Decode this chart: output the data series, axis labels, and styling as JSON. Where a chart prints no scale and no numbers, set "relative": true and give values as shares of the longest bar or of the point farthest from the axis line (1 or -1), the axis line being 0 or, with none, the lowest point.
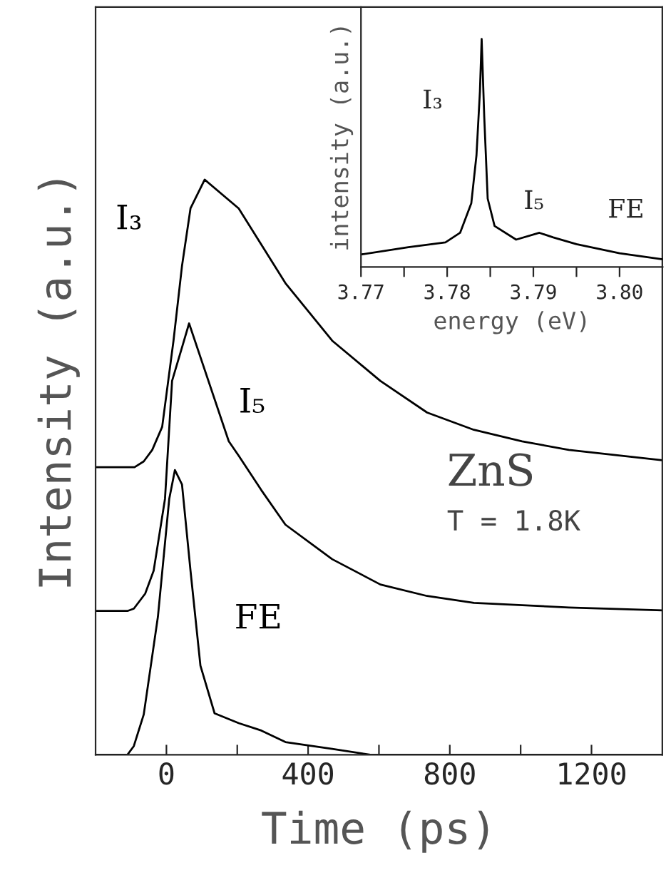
{
  "chart_data": [
    {
      "type": "line",
      "relative": true,
      "xlabel": "Time (ps)",
      "ylabel": "Intensity (a.u.)",
      "xlim": [
        -200,
        1400
      ],
      "xticks": [
        0,
        {
          "value": 200,
          "label": null
        },
        400,
        {
          "value": 600,
          "label": null
        },
        800,
        {
          "value": 1000,
          "label": null
        },
        1200
      ],
      "tick_labels": "x",
      "legend": false,
      "annotations": [
        "ZnS",
        "T = 1.8K"
      ],
      "series": [
        {
          "name": "I₃",
          "color": "#000000",
          "x": [
            -200,
            -90,
            -64,
            -40,
            -12,
            20,
            44,
            68,
            108,
            204,
            336,
            468,
            604,
            736,
            868,
            1004,
            1136,
            1400
          ],
          "values": [
            0.5,
            0.5,
            0.51,
            0.53,
            0.57,
            0.72,
            0.85,
            0.95,
            1.0,
            0.95,
            0.82,
            0.72,
            0.65,
            0.595,
            0.565,
            0.545,
            0.53,
            0.512
          ]
        },
        {
          "name": "I₅",
          "color": "#000000",
          "x": [
            -200,
            -110,
            -92,
            -60,
            -36,
            -4,
            16,
            64,
            176,
            204,
            268,
            336,
            468,
            604,
            736,
            868,
            1136,
            1400
          ],
          "values": [
            0.25,
            0.25,
            0.254,
            0.28,
            0.32,
            0.445,
            0.65,
            0.75,
            0.545,
            0.52,
            0.46,
            0.4,
            0.34,
            0.296,
            0.276,
            0.264,
            0.256,
            0.251
          ]
        },
        {
          "name": "FE",
          "color": "#000000",
          "x": [
            -200,
            -110,
            -92,
            -64,
            -24,
            8,
            24,
            44,
            68,
            96,
            136,
            204,
            268,
            336,
            468,
            576,
            1400
          ],
          "values": [
            0,
            0,
            0.015,
            0.07,
            0.24,
            0.445,
            0.495,
            0.47,
            0.32,
            0.155,
            0.072,
            0.055,
            0.042,
            0.022,
            0.01,
            0,
            0
          ]
        }
      ]
    },
    {
      "type": "line",
      "relative": true,
      "xlabel": "energy (eV)",
      "ylabel": "intensity (a.u.)",
      "xlim": [
        3.77,
        3.805
      ],
      "xticks": [
        3.77,
        {
          "value": 3.775,
          "label": null
        },
        3.78,
        {
          "value": 3.785,
          "label": null
        },
        3.79,
        {
          "value": 3.795,
          "label": null
        },
        {
          "value": 3.8,
          "label": "3.80"
        }
      ],
      "tick_labels": "x",
      "annotations": [
        {
          "text": "I₃",
          "x": 3.784,
          "y": 1.0
        },
        {
          "text": "I₅",
          "x": 3.7907,
          "y": 0.15
        },
        {
          "text": "FE",
          "x": 3.8,
          "y": 0.06
        }
      ],
      "series": [
        {
          "color": "#000000",
          "x": [
            3.77,
            3.7755,
            3.7798,
            3.7815,
            3.7828,
            3.7834,
            3.7838,
            3.784,
            3.7843,
            3.7847,
            3.7855,
            3.788,
            3.7907,
            3.7923,
            3.795,
            3.8,
            3.805
          ],
          "values": [
            0.055,
            0.087,
            0.108,
            0.15,
            0.28,
            0.49,
            0.77,
            1.0,
            0.66,
            0.3,
            0.18,
            0.12,
            0.15,
            0.13,
            0.1,
            0.06,
            0.034
          ]
        }
      ]
    }
  ]
}
